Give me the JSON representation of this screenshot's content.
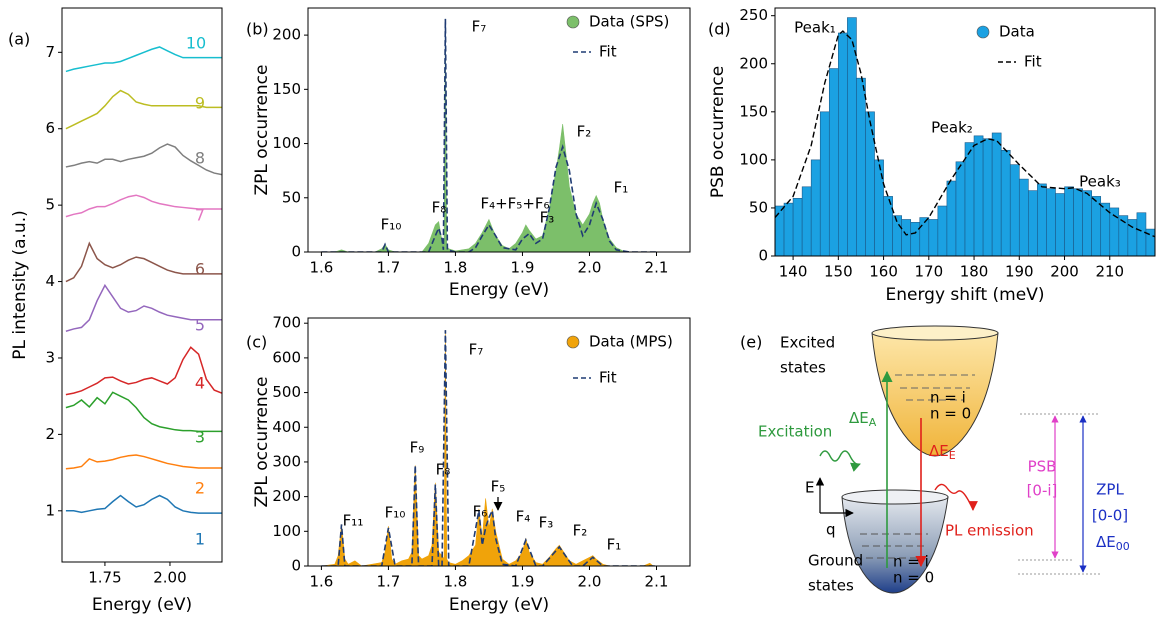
{
  "chart_data": [
    {
      "type": "line",
      "label": "(a)",
      "x_label": "Energy (eV)",
      "y_label": "PL intensity (a.u.)",
      "xlim": [
        1.585,
        2.2
      ],
      "ylim": [
        0.33,
        7.58
      ],
      "xticks": [
        1.75,
        {
          "value": 2,
          "label": "2.00"
        }
      ],
      "yticks": [
        1,
        2,
        3,
        4,
        5,
        6,
        7
      ],
      "x": [
        1.6,
        1.63,
        1.66,
        1.69,
        1.72,
        1.75,
        1.78,
        1.81,
        1.84,
        1.87,
        1.9,
        1.93,
        1.96,
        1.99,
        2.02,
        2.05,
        2.08,
        2.11,
        2.14,
        2.17,
        2.2
      ],
      "series": [
        {
          "name": "1",
          "color": "#1f77b4",
          "values": [
            1.0,
            1.0,
            0.98,
            1.0,
            1.02,
            1.03,
            1.12,
            1.2,
            1.12,
            1.05,
            1.08,
            1.15,
            1.2,
            1.15,
            1.05,
            1.0,
            0.98,
            0.97,
            0.97,
            0.97,
            0.97
          ]
        },
        {
          "name": "2",
          "color": "#ff7f0e",
          "values": [
            1.55,
            1.56,
            1.58,
            1.68,
            1.64,
            1.65,
            1.67,
            1.7,
            1.72,
            1.73,
            1.71,
            1.68,
            1.65,
            1.62,
            1.6,
            1.58,
            1.57,
            1.56,
            1.56,
            1.56,
            1.56
          ]
        },
        {
          "name": "3",
          "color": "#2ca02c",
          "values": [
            2.35,
            2.38,
            2.45,
            2.36,
            2.48,
            2.4,
            2.55,
            2.5,
            2.45,
            2.35,
            2.22,
            2.14,
            2.1,
            2.08,
            2.06,
            2.05,
            2.05,
            2.04,
            2.04,
            2.04,
            2.04
          ]
        },
        {
          "name": "4",
          "color": "#d62728",
          "values": [
            2.52,
            2.54,
            2.57,
            2.62,
            2.67,
            2.74,
            2.75,
            2.7,
            2.66,
            2.68,
            2.72,
            2.74,
            2.7,
            2.66,
            2.74,
            2.98,
            3.14,
            3.05,
            2.72,
            2.58,
            2.54
          ]
        },
        {
          "name": "5",
          "color": "#9467bd",
          "values": [
            3.35,
            3.38,
            3.4,
            3.5,
            3.75,
            3.95,
            3.8,
            3.65,
            3.6,
            3.62,
            3.68,
            3.65,
            3.6,
            3.56,
            3.54,
            3.52,
            3.5,
            3.5,
            3.5,
            3.5,
            3.5
          ]
        },
        {
          "name": "6",
          "color": "#8c564b",
          "values": [
            4.0,
            4.05,
            4.2,
            4.5,
            4.3,
            4.22,
            4.18,
            4.22,
            4.28,
            4.32,
            4.3,
            4.25,
            4.2,
            4.15,
            4.12,
            4.1,
            4.1,
            4.1,
            4.1,
            4.1,
            4.1
          ]
        },
        {
          "name": "7",
          "color": "#e377c2",
          "values": [
            4.85,
            4.88,
            4.9,
            4.95,
            4.98,
            4.98,
            5.02,
            5.07,
            5.11,
            5.13,
            5.1,
            5.05,
            5.02,
            5.0,
            4.98,
            4.97,
            4.96,
            4.95,
            4.95,
            4.95,
            4.95
          ]
        },
        {
          "name": "8",
          "color": "#7f7f7f",
          "values": [
            5.5,
            5.52,
            5.55,
            5.57,
            5.55,
            5.6,
            5.6,
            5.57,
            5.6,
            5.62,
            5.64,
            5.68,
            5.75,
            5.8,
            5.76,
            5.65,
            5.58,
            5.52,
            5.46,
            5.42,
            5.4
          ]
        },
        {
          "name": "9",
          "color": "#bcbd22",
          "values": [
            6.0,
            6.05,
            6.1,
            6.15,
            6.2,
            6.3,
            6.42,
            6.5,
            6.45,
            6.35,
            6.32,
            6.3,
            6.3,
            6.3,
            6.3,
            6.3,
            6.3,
            6.3,
            6.28,
            6.28,
            6.28
          ]
        },
        {
          "name": "10",
          "color": "#17becf",
          "values": [
            6.75,
            6.78,
            6.8,
            6.82,
            6.84,
            6.86,
            6.86,
            6.88,
            6.92,
            6.96,
            7.0,
            7.04,
            7.07,
            7.02,
            6.97,
            6.93,
            6.93,
            6.93,
            6.93,
            6.93,
            6.93
          ]
        }
      ]
    },
    {
      "type": "line",
      "label": "(b)",
      "x_label": "Energy (eV)",
      "y_label": "ZPL occurrence",
      "legend": "upper right",
      "xlim": [
        1.58,
        2.15
      ],
      "ylim": [
        0,
        225
      ],
      "xticks": [
        1.6,
        1.7,
        1.8,
        1.9,
        {
          "value": 2,
          "label": "2.0"
        },
        2.1
      ],
      "yticks": [
        0,
        50,
        100,
        150,
        200
      ],
      "annotations": [
        "F₇",
        "F₂",
        "F₁",
        "F₁₀",
        "F₈",
        "F₄+F₅+F₆",
        "F₃"
      ],
      "series": [
        {
          "name": "Data (SPS)",
          "color": "#7cbf6a",
          "style": "area",
          "x": [
            1.6,
            1.62,
            1.63,
            1.64,
            1.68,
            1.69,
            1.695,
            1.7,
            1.71,
            1.75,
            1.76,
            1.77,
            1.775,
            1.78,
            1.783,
            1.785,
            1.787,
            1.79,
            1.8,
            1.82,
            1.83,
            1.84,
            1.85,
            1.855,
            1.86,
            1.87,
            1.88,
            1.89,
            1.9,
            1.905,
            1.91,
            1.92,
            1.93,
            1.94,
            1.95,
            1.955,
            1.96,
            1.965,
            1.97,
            1.98,
            1.99,
            2.0,
            2.005,
            2.01,
            2.015,
            2.02,
            2.03,
            2.04,
            2.05,
            2.06,
            2.1
          ],
          "values": [
            0,
            0,
            2,
            0,
            0,
            3,
            7,
            2,
            0,
            0,
            8,
            25,
            28,
            10,
            5,
            215,
            5,
            3,
            1,
            3,
            8,
            18,
            30,
            22,
            15,
            6,
            3,
            8,
            18,
            25,
            20,
            12,
            15,
            40,
            75,
            95,
            118,
            90,
            60,
            35,
            25,
            35,
            45,
            52,
            45,
            30,
            12,
            4,
            1,
            0,
            0
          ]
        },
        {
          "name": "Fit",
          "color": "#1f3b73",
          "style": "dashed",
          "x": [
            1.6,
            1.68,
            1.69,
            1.695,
            1.7,
            1.76,
            1.77,
            1.775,
            1.78,
            1.782,
            1.785,
            1.788,
            1.8,
            1.82,
            1.83,
            1.84,
            1.85,
            1.86,
            1.87,
            1.89,
            1.9,
            1.91,
            1.92,
            1.93,
            1.94,
            1.95,
            1.96,
            1.97,
            1.98,
            1.99,
            2.0,
            2.01,
            2.02,
            2.03,
            2.04,
            2.06,
            2.1
          ],
          "values": [
            0,
            0,
            0,
            7,
            0,
            0,
            15,
            22,
            12,
            2,
            215,
            2,
            0,
            0,
            4,
            15,
            25,
            15,
            4,
            2,
            12,
            17,
            8,
            12,
            40,
            78,
            97,
            75,
            35,
            15,
            25,
            45,
            30,
            10,
            2,
            0,
            0
          ]
        }
      ]
    },
    {
      "type": "line",
      "label": "(c)",
      "x_label": "Energy (eV)",
      "y_label": "ZPL occurrence",
      "legend": "upper right",
      "xlim": [
        1.58,
        2.15
      ],
      "ylim": [
        0,
        715
      ],
      "xticks": [
        1.6,
        1.7,
        1.8,
        1.9,
        {
          "value": 2,
          "label": "2.0"
        },
        2.1
      ],
      "yticks": [
        0,
        100,
        200,
        300,
        400,
        500,
        600,
        700
      ],
      "annotations": [
        "F₇",
        "F₉",
        "F₈",
        "F₁₁",
        "F₁₀",
        "F₆",
        "F₅",
        "F₄",
        "F₃",
        "F₂",
        "F₁"
      ],
      "series": [
        {
          "name": "Data (MPS)",
          "color": "#f0a30a",
          "style": "area",
          "x": [
            1.6,
            1.62,
            1.625,
            1.63,
            1.635,
            1.64,
            1.65,
            1.66,
            1.69,
            1.695,
            1.7,
            1.705,
            1.71,
            1.72,
            1.73,
            1.735,
            1.74,
            1.745,
            1.75,
            1.76,
            1.765,
            1.77,
            1.775,
            1.78,
            1.783,
            1.785,
            1.787,
            1.79,
            1.8,
            1.81,
            1.82,
            1.83,
            1.835,
            1.84,
            1.845,
            1.85,
            1.855,
            1.86,
            1.87,
            1.88,
            1.89,
            1.9,
            1.905,
            1.91,
            1.92,
            1.93,
            1.94,
            1.95,
            1.955,
            1.96,
            1.97,
            1.98,
            1.99,
            2.0,
            2.005,
            2.01,
            2.02,
            2.03,
            2.08,
            2.09,
            2.095,
            2.1
          ],
          "values": [
            0,
            5,
            30,
            120,
            20,
            5,
            15,
            0,
            10,
            40,
            115,
            20,
            5,
            15,
            20,
            40,
            290,
            30,
            20,
            30,
            60,
            240,
            40,
            30,
            20,
            680,
            20,
            10,
            5,
            15,
            30,
            60,
            165,
            80,
            195,
            110,
            165,
            100,
            20,
            5,
            15,
            40,
            80,
            40,
            10,
            5,
            25,
            50,
            60,
            45,
            15,
            5,
            15,
            25,
            30,
            20,
            5,
            0,
            0,
            8,
            0,
            0
          ]
        },
        {
          "name": "Fit",
          "color": "#1f3b73",
          "style": "dashed",
          "x": [
            1.6,
            1.625,
            1.63,
            1.635,
            1.69,
            1.7,
            1.71,
            1.735,
            1.74,
            1.745,
            1.765,
            1.77,
            1.775,
            1.78,
            1.785,
            1.79,
            1.82,
            1.835,
            1.84,
            1.845,
            1.85,
            1.855,
            1.86,
            1.87,
            1.89,
            1.905,
            1.92,
            1.93,
            1.955,
            1.975,
            1.99,
            2.005,
            2.02,
            2.1
          ],
          "values": [
            0,
            0,
            120,
            0,
            0,
            110,
            0,
            0,
            290,
            0,
            0,
            235,
            0,
            0,
            680,
            0,
            0,
            160,
            60,
            110,
            140,
            160,
            80,
            5,
            0,
            75,
            0,
            0,
            55,
            0,
            0,
            25,
            0,
            0
          ]
        }
      ]
    },
    {
      "type": "histogram",
      "label": "(d)",
      "x_label": "Energy shift (meV)",
      "y_label": "PSB occurrence",
      "legend": "upper right",
      "xlim": [
        136,
        220
      ],
      "ylim": [
        0,
        258
      ],
      "xticks": [
        140,
        150,
        160,
        170,
        180,
        190,
        200,
        210
      ],
      "yticks": [
        0,
        50,
        100,
        150,
        200,
        250
      ],
      "annotations": [
        "Peak₁",
        "Peak₂",
        "Peak₃"
      ],
      "series": [
        {
          "name": "Data",
          "color": "#1ba1e2",
          "bins": [
            136,
            138,
            140,
            142,
            144,
            146,
            148,
            150,
            152,
            154,
            156,
            158,
            160,
            162,
            164,
            166,
            168,
            170,
            172,
            174,
            176,
            178,
            180,
            182,
            184,
            186,
            188,
            190,
            192,
            194,
            196,
            198,
            200,
            202,
            204,
            206,
            208,
            210,
            212,
            214,
            216,
            218,
            220
          ],
          "values": [
            52,
            55,
            60,
            72,
            100,
            150,
            195,
            232,
            248,
            185,
            150,
            100,
            62,
            42,
            38,
            35,
            40,
            38,
            52,
            78,
            98,
            118,
            125,
            122,
            128,
            110,
            95,
            80,
            68,
            75,
            70,
            65,
            72,
            70,
            68,
            62,
            55,
            50,
            42,
            38,
            45,
            28
          ]
        },
        {
          "name": "Fit",
          "color": "#000000",
          "style": "dashed",
          "x": [
            136,
            140,
            144,
            147,
            150,
            151,
            153,
            155,
            157,
            160,
            163,
            165,
            167,
            170,
            175,
            180,
            183,
            185,
            190,
            195,
            200,
            202,
            205,
            210,
            215,
            220
          ],
          "values": [
            40,
            62,
            115,
            180,
            230,
            234,
            225,
            190,
            140,
            75,
            35,
            22,
            24,
            40,
            80,
            115,
            122,
            120,
            95,
            72,
            70,
            71,
            65,
            45,
            30,
            20
          ]
        }
      ]
    }
  ],
  "diagram": {
    "label": "(e)",
    "excited": [
      "Excited",
      "states"
    ],
    "ground": [
      "Ground",
      "states"
    ],
    "excited_levels": [
      "n = i",
      "n = 0"
    ],
    "ground_levels": [
      "n = i",
      "n = 0"
    ],
    "excitation": "Excitation",
    "delta_a": {
      "text": "ΔE",
      "sub": "A"
    },
    "delta_e": {
      "text": "ΔE",
      "sub": "E"
    },
    "energy_axis": "E",
    "q_axis": "q",
    "emission": "PL emission",
    "psb": [
      "PSB",
      "[0-i]"
    ],
    "zpl": [
      "ZPL",
      "[0-0]"
    ],
    "delta_00": {
      "text": "ΔE",
      "sub": "00"
    }
  }
}
